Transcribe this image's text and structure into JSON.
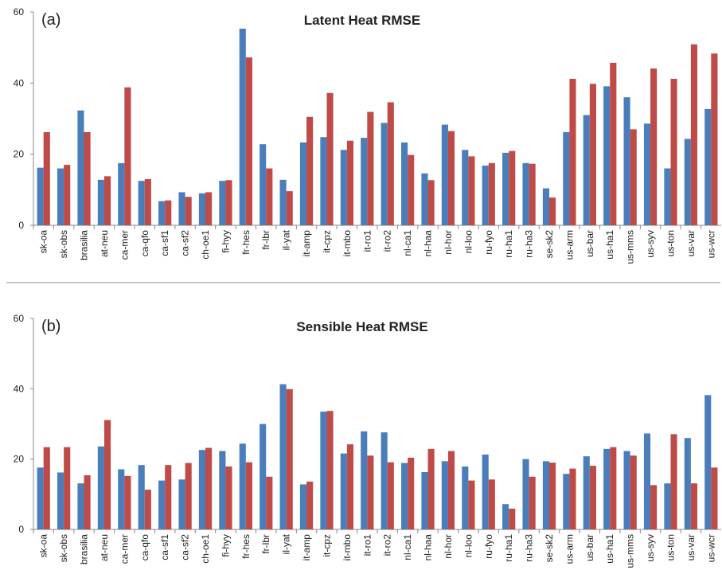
{
  "chart_data": [
    {
      "type": "bar",
      "panel_label": "(a)",
      "title": "Latent Heat RMSE",
      "categories": [
        "sk-oa",
        "sk-obs",
        "brasilia",
        "at-neu",
        "ca-mer",
        "ca-qfo",
        "ca-sf1",
        "ca-sf2",
        "ch-oe1",
        "fi-hyy",
        "fr-hes",
        "fr-lbr",
        "il-yat",
        "it-amp",
        "it-cpz",
        "it-mbo",
        "it-ro1",
        "it-ro2",
        "nl-ca1",
        "nl-haa",
        "nl-hor",
        "nl-loo",
        "ru-fyo",
        "ru-ha1",
        "ru-ha3",
        "se-sk2",
        "us-arm",
        "us-bar",
        "us-ha1",
        "us-mms",
        "us-syv",
        "us-ton",
        "us-var",
        "us-wcr"
      ],
      "series": [
        {
          "color": "#4a7ebb",
          "values": [
            16.2,
            16,
            32.3,
            12.8,
            17.5,
            12.5,
            6.8,
            9.3,
            9,
            12.5,
            55.3,
            22.8,
            12.8,
            23.3,
            24.8,
            21.2,
            24.6,
            28.8,
            23.3,
            14.6,
            28.3,
            21.2,
            16.8,
            20.4,
            17.5,
            10.4,
            26.2,
            31,
            39.1,
            36,
            28.6,
            16,
            24.3,
            32.7
          ]
        },
        {
          "color": "#be4b48",
          "values": [
            26.2,
            17,
            26.2,
            13.8,
            38.8,
            13,
            7,
            8,
            9.3,
            12.7,
            47.2,
            16,
            9.6,
            30.5,
            37.2,
            23.8,
            31.9,
            34.6,
            19.8,
            12.7,
            26.5,
            19.4,
            17.5,
            20.9,
            17.3,
            7.8,
            41.2,
            39.8,
            45.7,
            27,
            44.1,
            41.2,
            50.9,
            48.3
          ]
        }
      ],
      "ylim": [
        0,
        60
      ],
      "yticks": [
        0,
        20,
        40,
        60
      ]
    },
    {
      "type": "bar",
      "panel_label": "(b)",
      "title": "Sensible Heat RMSE",
      "categories": [
        "sk-oa",
        "sk-obs",
        "brasilia",
        "at-neu",
        "ca-mer",
        "ca-qfo",
        "ca-sf1",
        "ca-sf2",
        "ch-oe1",
        "fi-hyy",
        "fr-hes",
        "fr-lbr",
        "il-yat",
        "it-amp",
        "it-cpz",
        "it-mbo",
        "it-ro1",
        "it-ro2",
        "nl-ca1",
        "nl-haa",
        "nl-hor",
        "nl-loo",
        "ru-fyo",
        "ru-ha1",
        "ru-ha3",
        "se-sk2",
        "us-arm",
        "us-bar",
        "us-ha1",
        "us-mms",
        "us-syv",
        "us-ton",
        "us-var",
        "us-wcr"
      ],
      "series": [
        {
          "color": "#4a7ebb",
          "values": [
            17.6,
            16.2,
            13.1,
            23.6,
            17.1,
            18.3,
            13.9,
            14.2,
            22.6,
            22.3,
            24.4,
            30,
            41.3,
            12.8,
            33.5,
            21.6,
            27.9,
            27.6,
            18.9,
            16.3,
            19.4,
            17.9,
            21.3,
            7.2,
            20,
            19.4,
            15.8,
            20.8,
            22.9,
            22.3,
            27.3,
            13.1,
            26,
            38.2
          ]
        },
        {
          "color": "#be4b48",
          "values": [
            23.4,
            23.4,
            15.4,
            31.1,
            15.2,
            11.3,
            18.3,
            18.9,
            23.2,
            17.9,
            19.1,
            15,
            39.9,
            13.6,
            33.7,
            24.2,
            21,
            19.1,
            20.4,
            22.9,
            22.3,
            13.9,
            14.2,
            5.9,
            15,
            19,
            17.3,
            18.1,
            23.4,
            21,
            12.6,
            27.1,
            13.1,
            17.6
          ]
        }
      ],
      "ylim": [
        0,
        60
      ],
      "yticks": [
        0,
        20,
        40,
        60
      ]
    }
  ]
}
